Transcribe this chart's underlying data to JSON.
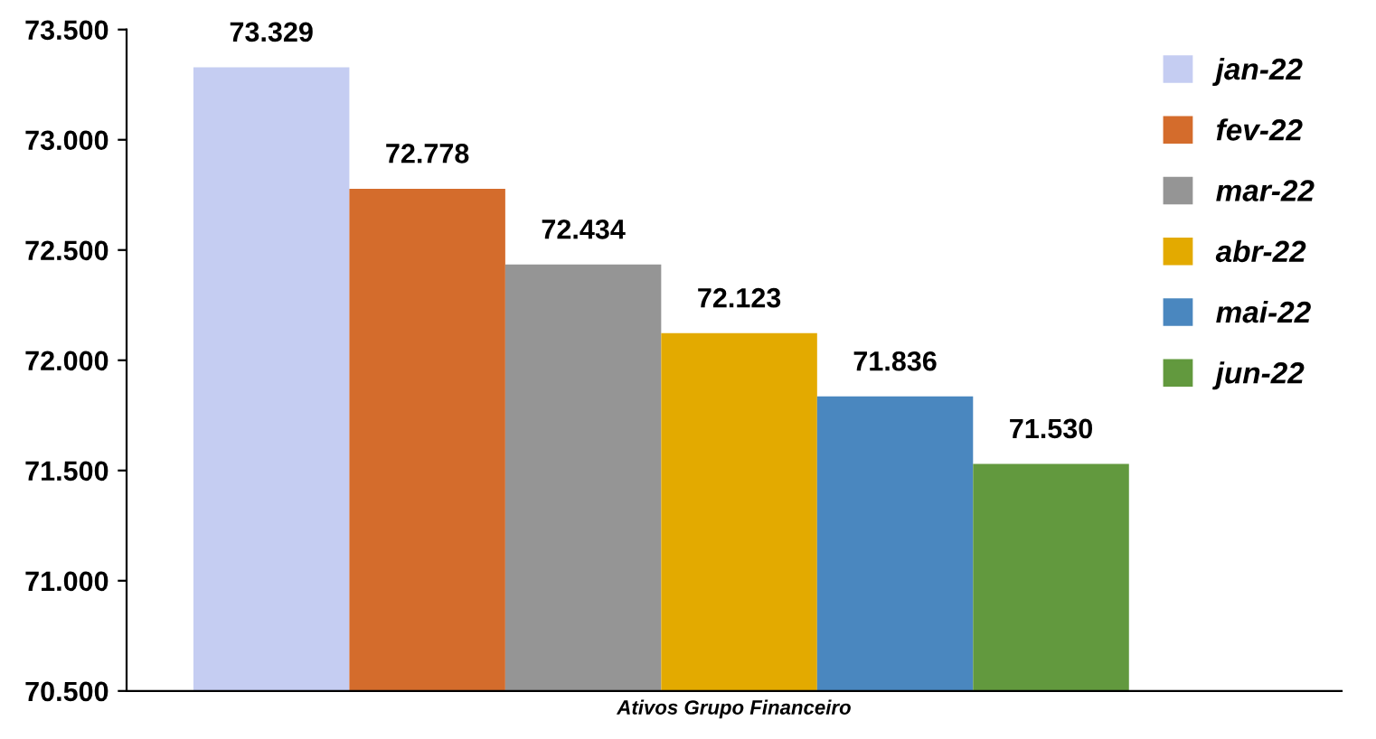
{
  "chart_data": {
    "type": "bar",
    "categories": [
      "Ativos Grupo Financeiro"
    ],
    "series": [
      {
        "name": "jan-22",
        "color": "#c5cdf2",
        "values": [
          73329
        ],
        "value_labels": [
          "73.329"
        ]
      },
      {
        "name": "fev-22",
        "color": "#d46c2c",
        "values": [
          72778
        ],
        "value_labels": [
          "72.778"
        ]
      },
      {
        "name": "mar-22",
        "color": "#959595",
        "values": [
          72434
        ],
        "value_labels": [
          "72.434"
        ]
      },
      {
        "name": "abr-22",
        "color": "#e3aa00",
        "values": [
          72123
        ],
        "value_labels": [
          "72.123"
        ]
      },
      {
        "name": "mai-22",
        "color": "#4a87bf",
        "values": [
          71836
        ],
        "value_labels": [
          "71.836"
        ]
      },
      {
        "name": "jun-22",
        "color": "#62993e",
        "values": [
          71530
        ],
        "value_labels": [
          "71.530"
        ]
      }
    ],
    "ylim": [
      70500,
      73500
    ],
    "yticks": [
      {
        "value": 70500,
        "label": "70.500"
      },
      {
        "value": 71000,
        "label": "71.000"
      },
      {
        "value": 71500,
        "label": "71.500"
      },
      {
        "value": 72000,
        "label": "72.000"
      },
      {
        "value": 72500,
        "label": "72.500"
      },
      {
        "value": 73000,
        "label": "73.000"
      },
      {
        "value": 73500,
        "label": "73.500"
      }
    ],
    "grid": false,
    "legend": "right"
  }
}
